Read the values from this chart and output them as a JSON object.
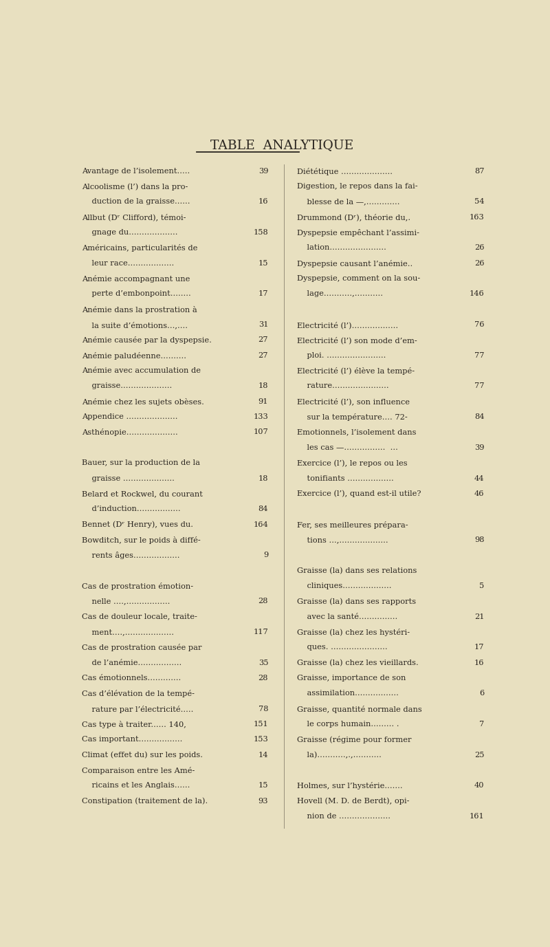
{
  "title": "TABLE  ANALYTIQUE",
  "background_color": "#e8e0c0",
  "text_color": "#2a2520",
  "fig_width": 8.0,
  "fig_height": 13.77,
  "left_entries": [
    [
      "Avantage de l’isolement.....",
      "39"
    ],
    [
      "Alcoolisme (l’) dans la pro-",
      ""
    ],
    [
      "    duction de la graisse......",
      "16"
    ],
    [
      "Allbut (Dʳ Clifford), témoi-",
      ""
    ],
    [
      "    gnage du...................",
      "158"
    ],
    [
      "Américains, particularités de",
      ""
    ],
    [
      "    leur race..................",
      "15"
    ],
    [
      "Anémie accompagnant une",
      ""
    ],
    [
      "    perte d’embonpoint........",
      "17"
    ],
    [
      "Anémie dans la prostration à",
      ""
    ],
    [
      "    la suite d’émotions...,....",
      "31"
    ],
    [
      "Anémie causée par la dyspepsie.",
      "27"
    ],
    [
      "Anémie paludéenne..........",
      "27"
    ],
    [
      "Anémie avec accumulation de",
      ""
    ],
    [
      "    graisse....................",
      "18"
    ],
    [
      "Anémie chez les sujets obèses.",
      "91"
    ],
    [
      "Appendice ....................",
      "133"
    ],
    [
      "Asthénopie....................",
      "107"
    ],
    [
      "",
      ""
    ],
    [
      "Bauer, sur la production de la",
      ""
    ],
    [
      "    graisse ....................",
      "18"
    ],
    [
      "Belard et Rockwel, du courant",
      ""
    ],
    [
      "    d’induction.................",
      "84"
    ],
    [
      "Bennet (Dʳ Henry), vues du.",
      "164"
    ],
    [
      "Bowditch, sur le poids à diffé-",
      ""
    ],
    [
      "    rents âges..................",
      "9"
    ],
    [
      "",
      ""
    ],
    [
      "Cas de prostration émotion-",
      ""
    ],
    [
      "    nelle ....,.................",
      "28"
    ],
    [
      "Cas de douleur locale, traite-",
      ""
    ],
    [
      "    ment....,...................",
      "117"
    ],
    [
      "Cas de prostration causée par",
      ""
    ],
    [
      "    de l’anémie.................",
      "35"
    ],
    [
      "Cas émotionnels.............",
      "28"
    ],
    [
      "Cas d’élévation de la tempé-",
      ""
    ],
    [
      "    rature par l’électricité.....",
      "78"
    ],
    [
      "Cas type à traiter...... 140,",
      "151"
    ],
    [
      "Cas important.................",
      "153"
    ],
    [
      "Climat (effet du) sur les poids.",
      "14"
    ],
    [
      "Comparaison entre les Amé-",
      ""
    ],
    [
      "    ricains et les Anglais......",
      "15"
    ],
    [
      "Constipation (traitement de la).",
      "93"
    ]
  ],
  "right_entries": [
    [
      "Diététique ....................",
      "87"
    ],
    [
      "Digestion, le repos dans la fai-",
      ""
    ],
    [
      "    blesse de la —,.............",
      "54"
    ],
    [
      "Drummond (Dʳ), théorie du,.",
      "163"
    ],
    [
      "Dyspepsie empêchant l’assimi-",
      ""
    ],
    [
      "    lation......................",
      "26"
    ],
    [
      "Dyspepsie causant l’anémie..",
      "26"
    ],
    [
      "Dyspepsie, comment on la sou-",
      ""
    ],
    [
      "    lage...........,...........",
      "146"
    ],
    [
      "",
      ""
    ],
    [
      "Electricité (l’)..................",
      "76"
    ],
    [
      "Electricité (l’) son mode d’em-",
      ""
    ],
    [
      "    ploi. .......................",
      "77"
    ],
    [
      "Electricité (l’) élève la tempé-",
      ""
    ],
    [
      "    rature......................",
      "77"
    ],
    [
      "Electricité (l’), son influence",
      ""
    ],
    [
      "    sur la température.... 72-",
      "84"
    ],
    [
      "Emotionnels, l’isolement dans",
      ""
    ],
    [
      "    les cas —................  ...",
      "39"
    ],
    [
      "Exercice (l’), le repos ou les",
      ""
    ],
    [
      "    tonifiants ..................",
      "44"
    ],
    [
      "Exercice (l’), quand est-il utile?",
      "46"
    ],
    [
      "",
      ""
    ],
    [
      "Fer, ses meilleures prépara-",
      ""
    ],
    [
      "    tions ...,...................",
      "98"
    ],
    [
      "",
      ""
    ],
    [
      "Graisse (la) dans ses relations",
      ""
    ],
    [
      "    cliniques...................",
      "5"
    ],
    [
      "Graisse (la) dans ses rapports",
      ""
    ],
    [
      "    avec la santé...............",
      "21"
    ],
    [
      "Graisse (la) chez les hystéri-",
      ""
    ],
    [
      "    ques. ......................",
      "17"
    ],
    [
      "Graisse (la) chez les vieillards.",
      "16"
    ],
    [
      "Graisse, importance de son",
      ""
    ],
    [
      "    assimilation.................",
      "6"
    ],
    [
      "Graisse, quantité normale dans",
      ""
    ],
    [
      "    le corps humain......... .",
      "7"
    ],
    [
      "Graisse (régime pour former",
      ""
    ],
    [
      "    la)...........,.,...........",
      "25"
    ],
    [
      "",
      ""
    ],
    [
      "Holmes, sur l’hystérie.......",
      "40"
    ],
    [
      "Hovell (M. D. de Berdt), opi-",
      ""
    ],
    [
      "    nion de ....................",
      "161"
    ]
  ]
}
